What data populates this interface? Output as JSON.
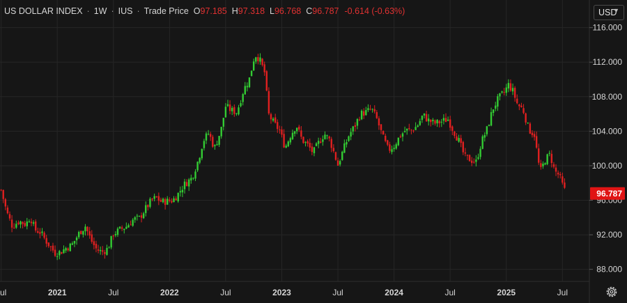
{
  "header": {
    "symbol": "US DOLLAR INDEX",
    "interval": "1W",
    "exchange": "IUS",
    "price_type": "Trade Price",
    "open_label": "O",
    "open": "97.185",
    "high_label": "H",
    "high": "97.318",
    "low_label": "L",
    "low": "96.768",
    "close_label": "C",
    "close": "96.787",
    "change": "-0.614 (-0.63%)"
  },
  "currency_selector": {
    "value": "USD",
    "icon": "chevron-down-icon"
  },
  "price_label": "96.787",
  "settings_icon": "gear-icon",
  "colors": {
    "background": "#161616",
    "up": "#33cc33",
    "down": "#e02020",
    "grid": "#262626",
    "text": "#d6d6d6",
    "last_price": "#e01414"
  },
  "chart_data": {
    "type": "candlestick",
    "x_ticks": [
      "Jul",
      "2021",
      "Jul",
      "2022",
      "Jul",
      "2023",
      "Jul",
      "2024",
      "Jul",
      "2025",
      "Jul"
    ],
    "x_tick_dates": [
      2020.5,
      2021.0,
      2021.5,
      2022.0,
      2022.5,
      2023.0,
      2023.5,
      2024.0,
      2024.5,
      2025.0,
      2025.5
    ],
    "y_ticks": [
      "88.000",
      "92.000",
      "96.000",
      "100.000",
      "104.000",
      "108.000",
      "112.000",
      "116.000"
    ],
    "y_range": [
      86.6,
      119.2
    ],
    "x_range": [
      2020.49,
      2025.74
    ],
    "last_price": 96.787,
    "grid": true,
    "close_series": [
      [
        2020.5,
        97.2
      ],
      [
        2020.55,
        94.6
      ],
      [
        2020.6,
        93.0
      ],
      [
        2020.66,
        93.6
      ],
      [
        2020.72,
        93.2
      ],
      [
        2020.76,
        94.1
      ],
      [
        2020.8,
        92.6
      ],
      [
        2020.85,
        92.3
      ],
      [
        2020.9,
        91.3
      ],
      [
        2020.94,
        90.6
      ],
      [
        2020.98,
        89.9
      ],
      [
        2021.03,
        90.0
      ],
      [
        2021.08,
        90.5
      ],
      [
        2021.13,
        90.8
      ],
      [
        2021.2,
        92.3
      ],
      [
        2021.25,
        93.0
      ],
      [
        2021.3,
        91.4
      ],
      [
        2021.35,
        90.3
      ],
      [
        2021.4,
        90.0
      ],
      [
        2021.45,
        90.4
      ],
      [
        2021.5,
        92.1
      ],
      [
        2021.56,
        92.6
      ],
      [
        2021.62,
        93.0
      ],
      [
        2021.68,
        93.8
      ],
      [
        2021.73,
        93.9
      ],
      [
        2021.78,
        94.9
      ],
      [
        2021.84,
        96.0
      ],
      [
        2021.88,
        96.3
      ],
      [
        2021.93,
        95.8
      ],
      [
        2021.98,
        95.9
      ],
      [
        2022.03,
        96.0
      ],
      [
        2022.08,
        96.8
      ],
      [
        2022.13,
        97.8
      ],
      [
        2022.2,
        98.6
      ],
      [
        2022.26,
        100.8
      ],
      [
        2022.3,
        102.9
      ],
      [
        2022.35,
        103.8
      ],
      [
        2022.4,
        102.0
      ],
      [
        2022.46,
        104.2
      ],
      [
        2022.5,
        106.9
      ],
      [
        2022.55,
        106.4
      ],
      [
        2022.6,
        106.2
      ],
      [
        2022.66,
        108.8
      ],
      [
        2022.71,
        110.0
      ],
      [
        2022.76,
        112.9
      ],
      [
        2022.8,
        112.4
      ],
      [
        2022.85,
        110.7
      ],
      [
        2022.88,
        106.0
      ],
      [
        2022.93,
        104.9
      ],
      [
        2022.98,
        104.1
      ],
      [
        2023.03,
        102.1
      ],
      [
        2023.08,
        103.6
      ],
      [
        2023.13,
        104.7
      ],
      [
        2023.18,
        103.0
      ],
      [
        2023.23,
        102.4
      ],
      [
        2023.28,
        101.5
      ],
      [
        2023.33,
        102.7
      ],
      [
        2023.38,
        103.7
      ],
      [
        2023.43,
        102.9
      ],
      [
        2023.5,
        100.1
      ],
      [
        2023.55,
        101.9
      ],
      [
        2023.6,
        103.6
      ],
      [
        2023.65,
        104.6
      ],
      [
        2023.7,
        106.0
      ],
      [
        2023.75,
        106.2
      ],
      [
        2023.8,
        106.6
      ],
      [
        2023.85,
        105.3
      ],
      [
        2023.9,
        103.3
      ],
      [
        2023.95,
        101.8
      ],
      [
        2024.0,
        102.3
      ],
      [
        2024.05,
        103.4
      ],
      [
        2024.1,
        104.1
      ],
      [
        2024.16,
        104.1
      ],
      [
        2024.21,
        104.7
      ],
      [
        2024.26,
        105.9
      ],
      [
        2024.3,
        105.3
      ],
      [
        2024.36,
        104.9
      ],
      [
        2024.42,
        105.1
      ],
      [
        2024.48,
        105.4
      ],
      [
        2024.52,
        104.3
      ],
      [
        2024.58,
        102.8
      ],
      [
        2024.63,
        101.0
      ],
      [
        2024.68,
        100.7
      ],
      [
        2024.73,
        100.4
      ],
      [
        2024.78,
        102.8
      ],
      [
        2024.83,
        104.3
      ],
      [
        2024.88,
        106.6
      ],
      [
        2024.93,
        107.8
      ],
      [
        2024.98,
        108.5
      ],
      [
        2025.02,
        109.4
      ],
      [
        2025.06,
        108.6
      ],
      [
        2025.1,
        107.1
      ],
      [
        2025.15,
        106.5
      ],
      [
        2025.2,
        104.2
      ],
      [
        2025.25,
        103.6
      ],
      [
        2025.3,
        99.2
      ],
      [
        2025.35,
        100.8
      ],
      [
        2025.39,
        101.3
      ],
      [
        2025.43,
        99.4
      ],
      [
        2025.47,
        98.9
      ],
      [
        2025.51,
        97.4
      ],
      [
        2025.535,
        96.787
      ]
    ]
  }
}
